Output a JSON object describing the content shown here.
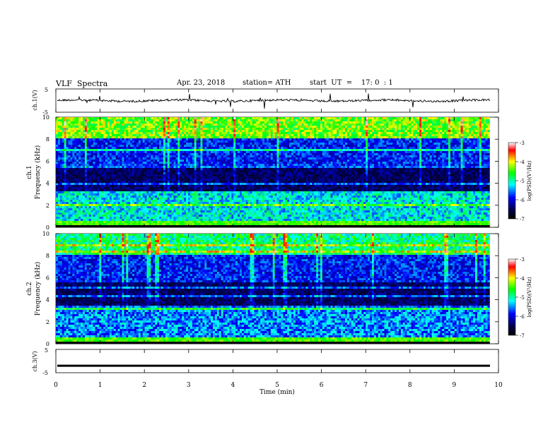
{
  "header": {
    "title": "VLF  Spectra",
    "date": "Apr. 23, 2018",
    "station": "station= ATH",
    "start": "start  UT  =    17: 0  : 1"
  },
  "chart_data": [
    {
      "type": "line",
      "name": "ch.1 waveform",
      "ylabel": "ch.1(V)",
      "ylim": [
        -5,
        5
      ],
      "yticks": [
        "5",
        "-5"
      ],
      "xlim": [
        0,
        10
      ],
      "baseline": 0
    },
    {
      "type": "heatmap",
      "name": "ch.1 spectrogram",
      "ylabel": "ch.1\nFrequency (kHz)",
      "ylabel_line1": "ch.1",
      "ylabel_line2": "Frequency  (kHz)",
      "ylim": [
        0,
        10
      ],
      "yticks": [
        "0",
        "2",
        "4",
        "6",
        "8",
        "10"
      ],
      "xlim": [
        0,
        9.8
      ],
      "colorbar": {
        "label": "log(PSD)(V²/Hz)",
        "range": [
          -7,
          -3
        ],
        "ticks": [
          "-3",
          "-4",
          "-5",
          "-6",
          "-7"
        ]
      }
    },
    {
      "type": "heatmap",
      "name": "ch.2 spectrogram",
      "ylabel_line1": "ch.2",
      "ylabel_line2": "Frequency  (kHz)",
      "ylim": [
        0,
        10
      ],
      "yticks": [
        "0",
        "2",
        "4",
        "6",
        "8",
        "10"
      ],
      "xlim": [
        0,
        9.8
      ],
      "colorbar": {
        "label": "log(PSD)(V²/Hz)",
        "range": [
          -7,
          -3
        ],
        "ticks": [
          "-3",
          "-4",
          "-5",
          "-6",
          "-7"
        ]
      }
    },
    {
      "type": "line",
      "name": "ch.3 waveform",
      "ylabel": "ch.3(V)",
      "ylim": [
        -5,
        5
      ],
      "yticks": [
        "5",
        "-5"
      ],
      "xlim": [
        0,
        10
      ],
      "baseline": -2
    }
  ],
  "xaxis": {
    "label": "Time  (min)",
    "ticks": [
      "0",
      "1",
      "2",
      "3",
      "4",
      "5",
      "6",
      "7",
      "8",
      "9",
      "10"
    ]
  },
  "colors": {
    "colormap": [
      "#000000",
      "#00004d",
      "#0000ff",
      "#00ffff",
      "#00ff00",
      "#ffff00",
      "#ff0000",
      "#ffffff"
    ]
  }
}
